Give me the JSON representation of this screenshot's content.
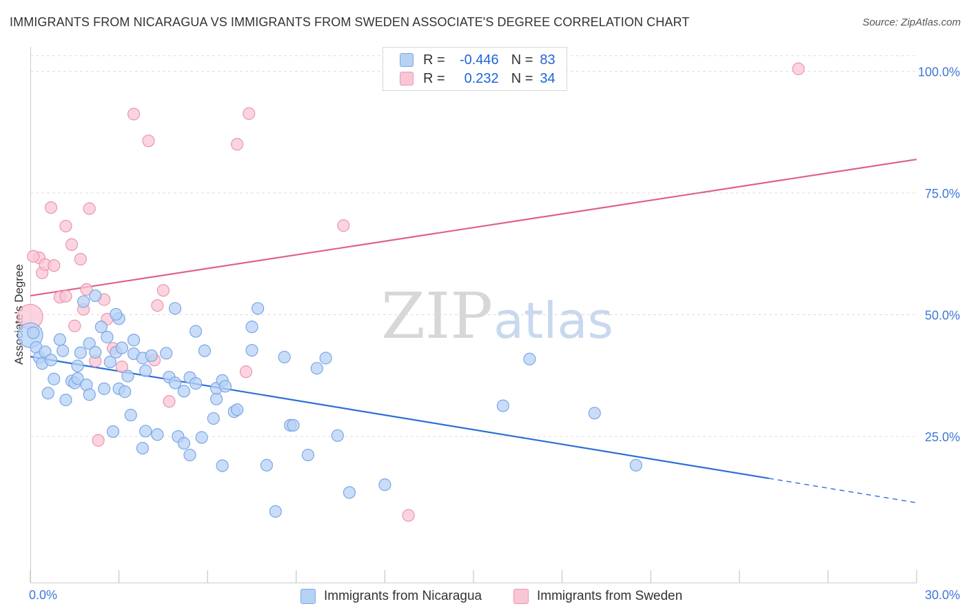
{
  "title": "IMMIGRANTS FROM NICARAGUA VS IMMIGRANTS FROM SWEDEN ASSOCIATE'S DEGREE CORRELATION CHART",
  "source": "Source: ZipAtlas.com",
  "watermark": {
    "zip": "ZIP",
    "atlas": "atlas"
  },
  "legend": {
    "rows": [
      {
        "r_label": "R =",
        "r_value": "-0.446",
        "n_label": "N =",
        "n_value": "83"
      },
      {
        "r_label": "R =",
        "r_value": "0.232",
        "n_label": "N =",
        "n_value": "34"
      }
    ]
  },
  "colors": {
    "blue_fill": "#b7d1f5",
    "blue_stroke": "#7aa6e6",
    "blue_line": "#2a6fd6",
    "pink_fill": "#f9c6d4",
    "pink_stroke": "#ec94ae",
    "pink_line": "#e0608a",
    "tick_label": "#3c78d8",
    "grid": "#dddddd"
  },
  "chart_data": {
    "type": "scatter",
    "title": "IMMIGRANTS FROM NICARAGUA VS IMMIGRANTS FROM SWEDEN ASSOCIATE'S DEGREE CORRELATION CHART",
    "xlabel": "",
    "ylabel": "Associate's Degree",
    "xlim": [
      0,
      30
    ],
    "ylim": [
      -5,
      105
    ],
    "x_tick_labels": [
      "0.0%",
      "30.0%"
    ],
    "y_ticks": [
      25,
      50,
      75,
      100
    ],
    "y_tick_labels": [
      "25.0%",
      "50.0%",
      "75.0%",
      "100.0%"
    ],
    "grid": "horizontal dashed",
    "legend_position": "bottom-center",
    "series": [
      {
        "name": "Immigrants from Nicaragua",
        "color": "#7aa6e6",
        "trend": {
          "x": [
            0,
            25
          ],
          "y": [
            41.4,
            16.4
          ],
          "dashed_to": [
            30,
            11.4
          ]
        },
        "points": [
          [
            0.0,
            45.8
          ],
          [
            0.2,
            43.3
          ],
          [
            0.3,
            41.2
          ],
          [
            0.4,
            40.0
          ],
          [
            0.5,
            42.4
          ],
          [
            0.7,
            40.7
          ],
          [
            0.6,
            33.9
          ],
          [
            0.8,
            36.8
          ],
          [
            1.0,
            44.9
          ],
          [
            1.1,
            42.6
          ],
          [
            1.2,
            32.5
          ],
          [
            1.4,
            36.4
          ],
          [
            1.5,
            36.0
          ],
          [
            1.6,
            36.9
          ],
          [
            1.6,
            39.5
          ],
          [
            1.7,
            42.2
          ],
          [
            1.9,
            35.6
          ],
          [
            2.0,
            33.6
          ],
          [
            2.0,
            44.1
          ],
          [
            2.2,
            42.3
          ],
          [
            1.8,
            52.7
          ],
          [
            2.2,
            53.9
          ],
          [
            2.4,
            47.5
          ],
          [
            2.5,
            34.8
          ],
          [
            2.6,
            45.4
          ],
          [
            2.7,
            40.3
          ],
          [
            2.9,
            42.3
          ],
          [
            2.8,
            26.0
          ],
          [
            3.0,
            34.8
          ],
          [
            3.1,
            43.2
          ],
          [
            3.0,
            49.2
          ],
          [
            2.9,
            50.1
          ],
          [
            3.2,
            34.2
          ],
          [
            3.4,
            29.4
          ],
          [
            3.3,
            37.4
          ],
          [
            3.5,
            44.8
          ],
          [
            3.5,
            42.0
          ],
          [
            3.9,
            38.5
          ],
          [
            3.8,
            41.1
          ],
          [
            4.1,
            41.6
          ],
          [
            3.9,
            26.1
          ],
          [
            3.8,
            22.6
          ],
          [
            4.3,
            25.4
          ],
          [
            4.6,
            42.1
          ],
          [
            4.7,
            37.2
          ],
          [
            4.9,
            36.0
          ],
          [
            4.9,
            51.3
          ],
          [
            5.0,
            25.0
          ],
          [
            5.2,
            34.3
          ],
          [
            5.2,
            23.6
          ],
          [
            5.4,
            21.2
          ],
          [
            5.4,
            37.1
          ],
          [
            5.6,
            46.6
          ],
          [
            5.6,
            35.9
          ],
          [
            5.8,
            24.8
          ],
          [
            5.9,
            42.6
          ],
          [
            6.2,
            28.7
          ],
          [
            6.3,
            32.7
          ],
          [
            6.3,
            34.9
          ],
          [
            6.5,
            36.5
          ],
          [
            6.6,
            35.3
          ],
          [
            6.5,
            19.0
          ],
          [
            6.9,
            30.1
          ],
          [
            7.0,
            30.5
          ],
          [
            7.5,
            47.5
          ],
          [
            7.5,
            42.7
          ],
          [
            7.7,
            51.3
          ],
          [
            8.0,
            19.1
          ],
          [
            8.3,
            9.6
          ],
          [
            8.6,
            41.3
          ],
          [
            8.8,
            27.3
          ],
          [
            8.9,
            27.3
          ],
          [
            9.4,
            21.2
          ],
          [
            9.7,
            39.0
          ],
          [
            10.0,
            41.1
          ],
          [
            10.4,
            25.2
          ],
          [
            10.8,
            13.5
          ],
          [
            12.0,
            15.1
          ],
          [
            16.0,
            31.3
          ],
          [
            16.9,
            40.9
          ],
          [
            19.1,
            29.8
          ],
          [
            20.5,
            19.1
          ],
          [
            0.1,
            46.3
          ]
        ]
      },
      {
        "name": "Immigrants from Sweden",
        "color": "#ec94ae",
        "trend": {
          "x": [
            0,
            30
          ],
          "y": [
            53.9,
            81.9
          ]
        },
        "points": [
          [
            0.0,
            49.6
          ],
          [
            0.3,
            61.7
          ],
          [
            0.4,
            58.6
          ],
          [
            0.5,
            60.3
          ],
          [
            0.7,
            72.0
          ],
          [
            0.8,
            60.1
          ],
          [
            1.0,
            53.6
          ],
          [
            1.2,
            53.8
          ],
          [
            1.2,
            68.2
          ],
          [
            1.4,
            64.4
          ],
          [
            1.5,
            47.7
          ],
          [
            1.7,
            61.4
          ],
          [
            1.8,
            51.1
          ],
          [
            1.9,
            55.2
          ],
          [
            2.0,
            71.8
          ],
          [
            2.2,
            40.5
          ],
          [
            2.3,
            24.2
          ],
          [
            2.5,
            53.1
          ],
          [
            2.6,
            49.1
          ],
          [
            2.8,
            43.1
          ],
          [
            3.1,
            39.3
          ],
          [
            3.5,
            91.2
          ],
          [
            4.0,
            85.7
          ],
          [
            4.3,
            51.9
          ],
          [
            4.5,
            55.0
          ],
          [
            4.2,
            40.7
          ],
          [
            4.7,
            32.2
          ],
          [
            7.0,
            85.0
          ],
          [
            7.3,
            38.3
          ],
          [
            7.4,
            91.3
          ],
          [
            10.6,
            68.3
          ],
          [
            12.8,
            8.8
          ],
          [
            26.0,
            100.5
          ],
          [
            0.1,
            62.0
          ]
        ]
      }
    ]
  }
}
